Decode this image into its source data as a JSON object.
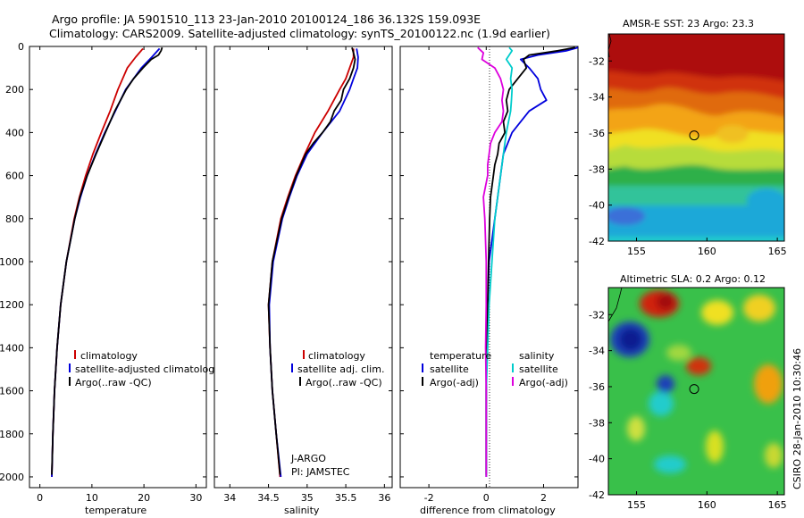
{
  "header": {
    "line1": "Argo profile: JA 5901510_113 23-Jan-2010 20100124_186 36.132S 159.093E",
    "line2": "Climatology: CARS2009. Satellite-adjusted climatology: synTS_20100122.nc (1.9d earlier)"
  },
  "side_label": "CSIRO 28-Jan-2010 10:30:46",
  "colors": {
    "climatology": "#cc0000",
    "satellite": "#0000dd",
    "argo": "#000000",
    "salinity_satellite": "#00cccc",
    "salinity_argo": "#dd00dd"
  },
  "chart_data": [
    {
      "type": "line",
      "xlabel": "temperature",
      "ylim": [
        0,
        2050
      ],
      "y_reversed": true,
      "xlim": [
        -2,
        32
      ],
      "xticks": [
        0,
        10,
        20,
        30
      ],
      "yticks": [
        0,
        200,
        400,
        600,
        800,
        1000,
        1200,
        1400,
        1600,
        1800,
        2000
      ],
      "legend": [
        "climatology",
        "satellite-adjusted climatology",
        "Argo(..raw -QC)"
      ],
      "legend_colors": [
        "#cc0000",
        "#0000dd",
        "#000000"
      ],
      "series": [
        {
          "name": "climatology",
          "color": "#cc0000",
          "depth": [
            10,
            50,
            100,
            200,
            300,
            400,
            500,
            600,
            700,
            800,
            1000,
            1200,
            1400,
            1600,
            1800,
            2000
          ],
          "values": [
            19.8,
            18.4,
            16.8,
            15,
            13.5,
            11.8,
            10.2,
            8.8,
            7.6,
            6.6,
            5.1,
            4,
            3.3,
            2.8,
            2.5,
            2.3
          ]
        },
        {
          "name": "satellite-adjusted climatology",
          "color": "#0000dd",
          "depth": [
            10,
            50,
            100,
            200,
            300,
            400,
            500,
            600,
            700,
            800,
            1000,
            1200,
            1400,
            1600,
            1800,
            2000
          ],
          "values": [
            23,
            21.5,
            19.5,
            16.5,
            14.5,
            12.5,
            10.7,
            9.1,
            7.8,
            6.7,
            5.1,
            4,
            3.3,
            2.8,
            2.5,
            2.3
          ]
        },
        {
          "name": "Argo(..raw -QC)",
          "color": "#000000",
          "depth": [
            5,
            20,
            40,
            60,
            100,
            150,
            200,
            300,
            400,
            500,
            600,
            700,
            800,
            1000,
            1200,
            1400,
            1600,
            1800,
            1990
          ],
          "values": [
            23.5,
            23.3,
            22.8,
            21.4,
            19.8,
            18,
            16.6,
            14.4,
            12.6,
            10.8,
            9.1,
            7.7,
            6.7,
            5.1,
            4,
            3.3,
            2.8,
            2.5,
            2.3
          ]
        }
      ]
    },
    {
      "type": "line",
      "xlabel": "salinity",
      "ylim": [
        0,
        2050
      ],
      "y_reversed": true,
      "xlim": [
        33.8,
        36.1
      ],
      "xticks": [
        34,
        34.5,
        35,
        35.5,
        36
      ],
      "legend": [
        "climatology",
        "satellite adj. clim.",
        "Argo(..raw -QC)"
      ],
      "legend_colors": [
        "#cc0000",
        "#0000dd",
        "#000000"
      ],
      "annotations": [
        "J-ARGO",
        "PI: JAMSTEC"
      ],
      "series": [
        {
          "name": "climatology",
          "color": "#cc0000",
          "depth": [
            10,
            50,
            100,
            150,
            200,
            300,
            400,
            500,
            600,
            700,
            800,
            1000,
            1200,
            1400,
            1600,
            1800,
            2000
          ],
          "values": [
            35.6,
            35.6,
            35.55,
            35.5,
            35.42,
            35.27,
            35.1,
            34.97,
            34.85,
            34.75,
            34.66,
            34.55,
            34.5,
            34.52,
            34.55,
            34.6,
            34.65
          ]
        },
        {
          "name": "satellite adj. clim.",
          "color": "#0000dd",
          "depth": [
            10,
            50,
            100,
            150,
            200,
            300,
            400,
            500,
            600,
            700,
            800,
            1000,
            1200,
            1400,
            1600,
            1800,
            2000
          ],
          "values": [
            35.64,
            35.66,
            35.65,
            35.6,
            35.55,
            35.42,
            35.2,
            35,
            34.87,
            34.77,
            34.68,
            34.56,
            34.51,
            34.52,
            34.55,
            34.6,
            34.66
          ]
        },
        {
          "name": "Argo(..raw -QC)",
          "color": "#000000",
          "depth": [
            5,
            30,
            60,
            100,
            150,
            200,
            250,
            300,
            350,
            400,
            450,
            500,
            600,
            700,
            800,
            1000,
            1200,
            1400,
            1600,
            1800,
            1990
          ],
          "values": [
            35.58,
            35.6,
            35.62,
            35.6,
            35.55,
            35.47,
            35.44,
            35.35,
            35.3,
            35.2,
            35.08,
            34.98,
            34.86,
            34.76,
            34.67,
            34.55,
            34.5,
            34.52,
            34.55,
            34.6,
            34.65
          ]
        }
      ]
    },
    {
      "type": "line",
      "xlabel": "difference from climatology",
      "ylim": [
        0,
        2050
      ],
      "y_reversed": true,
      "xlim": [
        -3,
        3.2
      ],
      "xticks": [
        -2,
        0,
        2
      ],
      "legend_left": [
        "temperature",
        "satellite",
        "Argo(-adj)"
      ],
      "legend_left_colors": [
        "",
        "#0000dd",
        "#000000"
      ],
      "legend_right": [
        "salinity",
        "satellite",
        "Argo(-adj)"
      ],
      "legend_right_colors": [
        "",
        "#00cccc",
        "#dd00dd"
      ],
      "series": [
        {
          "name": "temperature satellite",
          "color": "#0000dd",
          "depth": [
            5,
            20,
            40,
            60,
            100,
            150,
            200,
            250,
            300,
            350,
            400,
            500,
            600,
            700,
            800,
            900,
            1000,
            1200,
            1400,
            1600,
            2000
          ],
          "values": [
            3.2,
            2.8,
            1.8,
            1.2,
            1.5,
            1.8,
            1.9,
            2.1,
            1.5,
            1.2,
            0.9,
            0.6,
            0.5,
            0.4,
            0.3,
            0.2,
            0.1,
            0.05,
            0,
            0,
            0
          ]
        },
        {
          "name": "temperature Argo(-adj)",
          "color": "#000000",
          "depth": [
            5,
            20,
            40,
            60,
            100,
            150,
            200,
            250,
            300,
            350,
            400,
            450,
            500,
            550,
            600,
            700,
            800,
            900,
            1000,
            1200,
            1400,
            1600,
            1800,
            1990
          ],
          "values": [
            3.1,
            2.5,
            1.5,
            1.3,
            1.4,
            1.1,
            0.8,
            0.7,
            0.75,
            0.6,
            0.65,
            0.45,
            0.4,
            0.3,
            0.25,
            0.15,
            0.12,
            0.1,
            0.08,
            0.05,
            0.02,
            0,
            0,
            0
          ]
        },
        {
          "name": "salinity satellite",
          "color": "#00cccc",
          "depth": [
            5,
            20,
            40,
            60,
            80,
            100,
            150,
            200,
            250,
            300,
            400,
            500,
            600,
            700,
            800,
            1000,
            1200,
            1400,
            1600,
            2000
          ],
          "values": [
            0.8,
            0.9,
            0.8,
            0.7,
            0.8,
            0.9,
            0.85,
            0.9,
            0.88,
            0.85,
            0.7,
            0.6,
            0.5,
            0.4,
            0.3,
            0.2,
            0.1,
            0.05,
            0,
            0
          ]
        },
        {
          "name": "salinity Argo(-adj)",
          "color": "#dd00dd",
          "depth": [
            5,
            30,
            60,
            100,
            150,
            200,
            250,
            300,
            350,
            400,
            450,
            500,
            550,
            600,
            700,
            800,
            1000,
            1200,
            1400,
            1600,
            2000
          ],
          "values": [
            -0.3,
            -0.1,
            -0.15,
            0.3,
            0.5,
            0.6,
            0.55,
            0.6,
            0.55,
            0.3,
            0.15,
            0.1,
            0.05,
            0.05,
            -0.1,
            -0.05,
            0,
            0,
            -0.02,
            0,
            0
          ]
        }
      ]
    },
    {
      "type": "heatmap",
      "title": "AMSR-E SST: 23 Argo: 23.3",
      "xlim": [
        153,
        165.5
      ],
      "ylim": [
        -42,
        -30.5
      ],
      "xticks": [
        155,
        160,
        165
      ],
      "yticks": [
        -32,
        -34,
        -36,
        -38,
        -40,
        -42
      ],
      "marker": {
        "lon": 159.093,
        "lat": -36.132
      }
    },
    {
      "type": "heatmap",
      "title": "Altimetric SLA: 0.2 Argo: 0.12",
      "xlim": [
        153,
        165.5
      ],
      "ylim": [
        -42,
        -30.5
      ],
      "xticks": [
        155,
        160,
        165
      ],
      "yticks": [
        -32,
        -34,
        -36,
        -38,
        -40,
        -42
      ],
      "marker": {
        "lon": 159.093,
        "lat": -36.132
      }
    }
  ]
}
